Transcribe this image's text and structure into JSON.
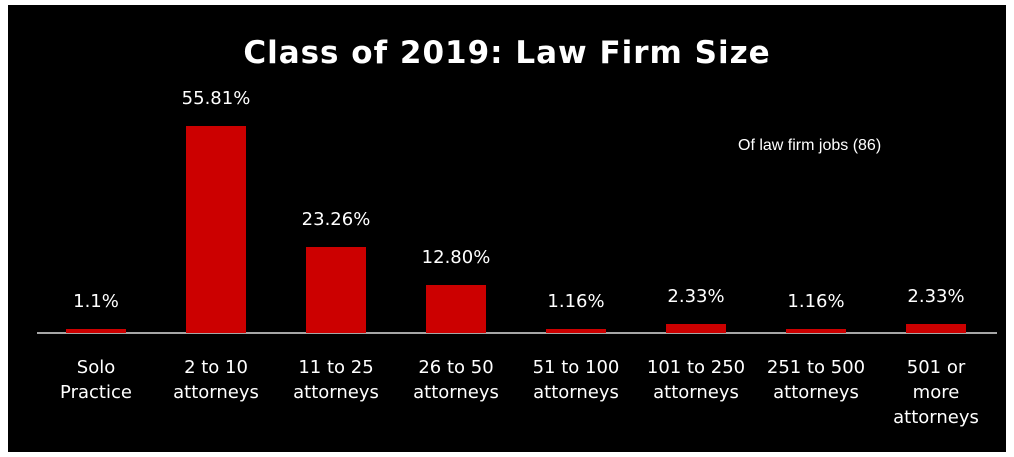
{
  "chart_data": {
    "type": "bar",
    "title": "Class of 2019: Law Firm Size",
    "annotation": "Of law firm jobs (86)",
    "categories": [
      "Solo\nPractice",
      "2 to 10\nattorneys",
      "11 to 25\nattorneys",
      "26 to 50\nattorneys",
      "51 to 100\nattorneys",
      "101 to 250\nattorneys",
      "251 to 500\nattorneys",
      "501 or\nmore\nattorneys"
    ],
    "values": [
      1.1,
      55.81,
      23.26,
      12.8,
      1.16,
      2.33,
      1.16,
      2.33
    ],
    "value_labels": [
      "1.1%",
      "55.81%",
      "23.26%",
      "12.80%",
      "1.16%",
      "2.33%",
      "1.16%",
      "2.33%"
    ],
    "color": "#cc0000",
    "ylim": [
      0,
      60
    ]
  }
}
